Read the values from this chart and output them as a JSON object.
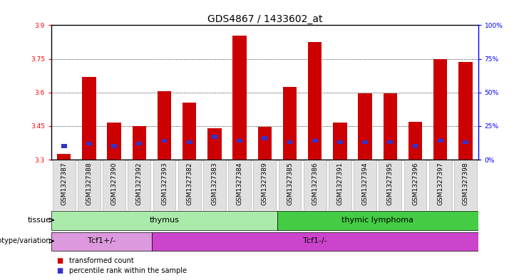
{
  "title": "GDS4867 / 1433602_at",
  "samples": [
    "GSM1327387",
    "GSM1327388",
    "GSM1327390",
    "GSM1327392",
    "GSM1327393",
    "GSM1327382",
    "GSM1327383",
    "GSM1327384",
    "GSM1327389",
    "GSM1327385",
    "GSM1327386",
    "GSM1327391",
    "GSM1327394",
    "GSM1327395",
    "GSM1327396",
    "GSM1327397",
    "GSM1327398"
  ],
  "transformed_count": [
    3.325,
    3.67,
    3.465,
    3.45,
    3.605,
    3.555,
    3.44,
    3.855,
    3.445,
    3.625,
    3.825,
    3.465,
    3.595,
    3.595,
    3.47,
    3.75,
    3.735
  ],
  "percentile_rank": [
    10,
    12,
    10,
    12,
    14,
    13,
    17,
    14,
    16,
    13,
    14,
    13,
    13,
    13,
    10,
    14,
    13
  ],
  "ymin": 3.3,
  "ymax": 3.9,
  "yticks_left": [
    3.3,
    3.45,
    3.6,
    3.75,
    3.9
  ],
  "yticks_right": [
    0,
    25,
    50,
    75,
    100
  ],
  "bar_color": "#cc0000",
  "blue_color": "#3333cc",
  "tissue_groups": [
    {
      "label": "thymus",
      "start": 0,
      "end": 8,
      "color": "#aaeaaa"
    },
    {
      "label": "thymic lymphoma",
      "start": 9,
      "end": 16,
      "color": "#44cc44"
    }
  ],
  "genotype_groups": [
    {
      "label": "Tcf1+/-",
      "start": 0,
      "end": 3,
      "color": "#dd99dd"
    },
    {
      "label": "Tcf1-/-",
      "start": 4,
      "end": 16,
      "color": "#cc44cc"
    }
  ],
  "tissue_label": "tissue",
  "genotype_label": "genotype/variation",
  "legend_red": "transformed count",
  "legend_blue": "percentile rank within the sample",
  "grid_dotted": [
    3.45,
    3.6,
    3.75
  ],
  "title_fontsize": 10,
  "tick_fontsize": 6.5,
  "label_fontsize": 8,
  "bar_width": 0.55
}
